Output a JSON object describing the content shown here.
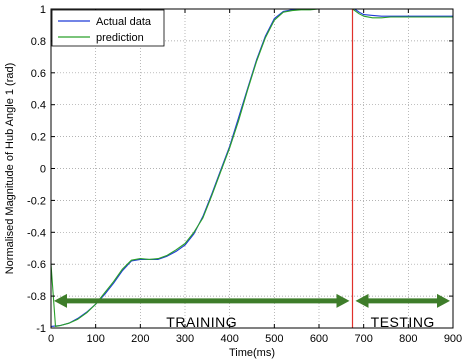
{
  "chart_data": {
    "type": "line",
    "xlabel": "Time(ms)",
    "ylabel": "Normalised Magnitude of Hub Angle 1 (rad)",
    "xlim": [
      0,
      900
    ],
    "ylim": [
      -1,
      1
    ],
    "xticks": [
      0,
      100,
      200,
      300,
      400,
      500,
      600,
      700,
      800,
      900
    ],
    "yticks": [
      -1,
      -0.8,
      -0.6,
      -0.4,
      -0.2,
      0,
      0.2,
      0.4,
      0.6,
      0.8,
      1
    ],
    "grid": "dotted",
    "legend_position": "top-left",
    "series": [
      {
        "name": "Actual data",
        "color": "#1f3bd6",
        "x": [
          0,
          20,
          40,
          60,
          80,
          100,
          120,
          140,
          160,
          180,
          200,
          220,
          240,
          260,
          280,
          300,
          320,
          340,
          360,
          380,
          400,
          420,
          440,
          460,
          480,
          500,
          520,
          540,
          560,
          580,
          600,
          620,
          640,
          660,
          675,
          680,
          690,
          700,
          720,
          740,
          760,
          780,
          800,
          820,
          840,
          860,
          880,
          900
        ],
        "y": [
          -0.99,
          -0.985,
          -0.97,
          -0.94,
          -0.9,
          -0.85,
          -0.79,
          -0.72,
          -0.64,
          -0.58,
          -0.57,
          -0.57,
          -0.57,
          -0.55,
          -0.52,
          -0.48,
          -0.41,
          -0.3,
          -0.16,
          -0.01,
          0.14,
          0.32,
          0.5,
          0.68,
          0.83,
          0.94,
          0.985,
          0.995,
          1.0,
          1.0,
          1.0,
          1.0,
          1.0,
          1.0,
          1.0,
          1.0,
          0.98,
          0.965,
          0.96,
          0.955,
          0.955,
          0.955,
          0.955,
          0.955,
          0.955,
          0.955,
          0.955,
          0.955
        ]
      },
      {
        "name": "prediction",
        "color": "#2aa02a",
        "x": [
          0,
          10,
          20,
          40,
          60,
          80,
          100,
          120,
          140,
          160,
          180,
          200,
          220,
          240,
          260,
          280,
          300,
          320,
          340,
          360,
          380,
          400,
          420,
          440,
          460,
          480,
          500,
          520,
          540,
          560,
          580,
          600,
          620,
          640,
          660,
          675,
          680,
          690,
          700,
          720,
          740,
          760,
          780,
          800,
          820,
          840,
          860,
          880,
          900
        ],
        "y": [
          -0.6,
          -0.99,
          -0.985,
          -0.97,
          -0.945,
          -0.905,
          -0.85,
          -0.78,
          -0.71,
          -0.63,
          -0.575,
          -0.565,
          -0.57,
          -0.565,
          -0.545,
          -0.51,
          -0.47,
          -0.4,
          -0.31,
          -0.17,
          -0.02,
          0.13,
          0.3,
          0.49,
          0.67,
          0.82,
          0.93,
          0.98,
          0.99,
          0.995,
          0.995,
          1.0,
          1.0,
          1.0,
          1.0,
          1.0,
          0.99,
          0.97,
          0.955,
          0.945,
          0.945,
          0.95,
          0.95,
          0.95,
          0.95,
          0.95,
          0.95,
          0.95,
          0.95
        ]
      }
    ],
    "split_line": {
      "x": 675,
      "color": "#e0312b"
    },
    "phase_arrows": {
      "y": -0.83,
      "color": "#3e7d2a",
      "training": {
        "label": "TRAINING",
        "x_start": 0,
        "x_end": 675
      },
      "testing": {
        "label": "TESTING",
        "x_start": 675,
        "x_end": 900
      }
    }
  }
}
